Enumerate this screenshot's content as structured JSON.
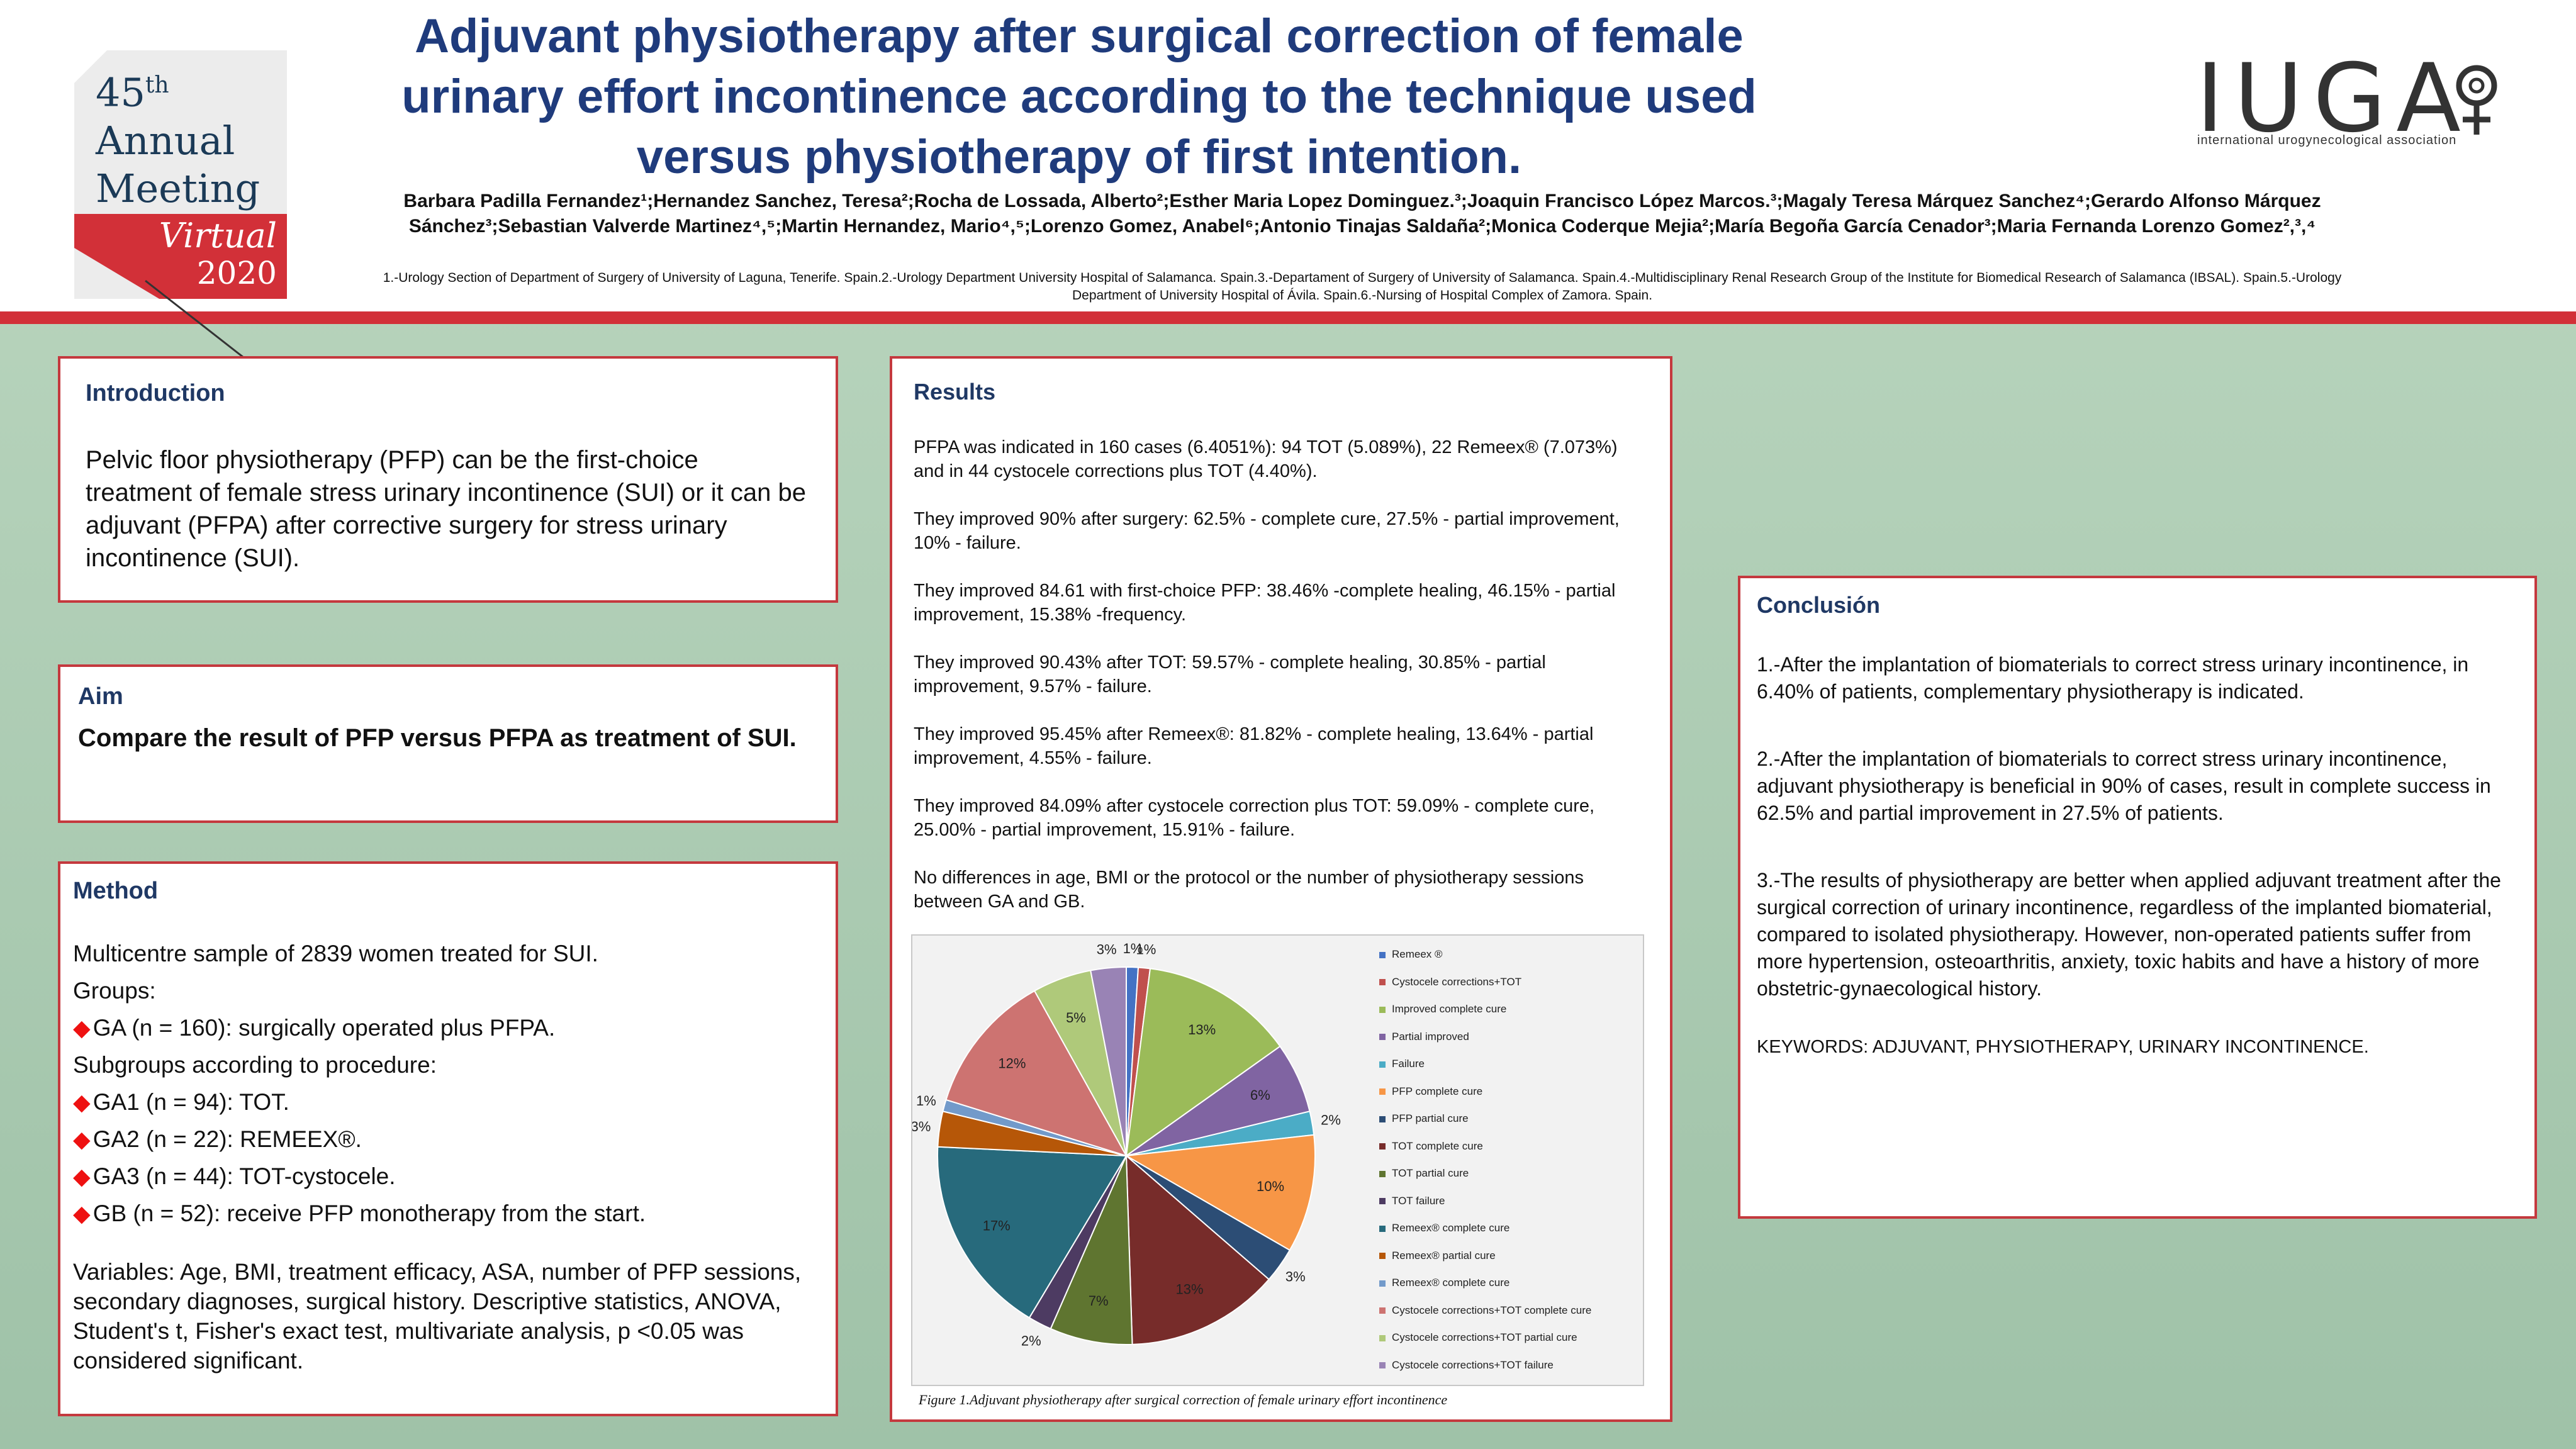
{
  "header": {
    "title": "Adjuvant physiotherapy after surgical correction of female urinary effort incontinence according to the technique used versus physiotherapy of first intention.",
    "authors": "Barbara Padilla Fernandez¹;Hernandez Sanchez, Teresa²;Rocha de Lossada, Alberto²;Esther Maria Lopez Dominguez.³;Joaquin Francisco López Marcos.³;Magaly Teresa Márquez Sanchez⁴;Gerardo Alfonso Márquez Sánchez³;Sebastian Valverde Martinez⁴,⁵;Martin Hernandez, Mario⁴,⁵;Lorenzo Gomez, Anabel⁶;Antonio Tinajas Saldaña²;Monica Coderque Mejia²;María Begoña García Cenador³;Maria Fernanda Lorenzo Gomez²,³,⁴",
    "affiliations": "1.-Urology Section of Department of Surgery of University of Laguna, Tenerife. Spain.2.-Urology Department University Hospital of Salamanca. Spain.3.-Departament of Surgery of University of Salamanca. Spain.4.-Multidisciplinary Renal Research Group of the Institute for Biomedical Research of Salamanca (IBSAL). Spain.5.-Urology Department of University Hospital of Ávila. Spain.6.-Nursing of Hospital Complex of Zamora. Spain."
  },
  "badge": {
    "number": "45",
    "suffix": "th",
    "line1": "Annual",
    "line2": "Meeting",
    "virtual": "Virtual",
    "year": "2020"
  },
  "logo": {
    "name": "IUGA",
    "subtitle": "international urogynecological association"
  },
  "introduction": {
    "heading": "Introduction",
    "text": "Pelvic floor physiotherapy (PFP) can be the first-choice treatment of female stress urinary incontinence (SUI) or it can be adjuvant (PFPA) after corrective surgery for stress urinary incontinence (SUI)."
  },
  "aim": {
    "heading": "Aim",
    "text": "Compare the result of PFP versus PFPA as treatment of SUI."
  },
  "method": {
    "heading": "Method",
    "lines": [
      "Multicentre sample of 2839 women treated for SUI.",
      "Groups:"
    ],
    "ga": "GA (n = 160): surgically operated plus PFPA.",
    "sub_heading": "Subgroups according to procedure:",
    "ga1": "GA1 (n = 94): TOT.",
    "ga2": "GA2 (n = 22): REMEEX®.",
    "ga3": "GA3 (n = 44): TOT-cystocele.",
    "gb": "GB (n = 52): receive PFP monotherapy from the start.",
    "variables": "Variables: Age, BMI, treatment efficacy, ASA, number of PFP sessions, secondary diagnoses, surgical history. Descriptive statistics, ANOVA, Student's t, Fisher's exact test, multivariate analysis, p <0.05 was considered significant."
  },
  "results": {
    "heading": "Results",
    "paragraphs": [
      "PFPA was indicated in 160 cases (6.4051%): 94 TOT (5.089%), 22 Remeex® (7.073%) and in 44 cystocele corrections plus TOT (4.40%).",
      "They improved 90% after surgery: 62.5% - complete cure, 27.5% - partial improvement, 10% - failure.",
      "They improved 84.61 with first-choice PFP: 38.46% -complete healing, 46.15% - partial improvement, 15.38% -frequency.",
      "They improved 90.43% after TOT: 59.57% - complete healing, 30.85% - partial improvement, 9.57% - failure.",
      "They improved 95.45% after Remeex®: 81.82% - complete healing, 13.64% - partial improvement, 4.55% - failure.",
      "They improved 84.09% after cystocele correction plus TOT: 59.09% - complete cure, 25.00% - partial improvement, 15.91% - failure.",
      "No differences in age, BMI or the protocol or the number of physiotherapy sessions between GA and GB."
    ],
    "figure_caption": "Figure 1.Adjuvant physiotherapy after surgical correction of female urinary effort incontinence"
  },
  "conclusion": {
    "heading": "Conclusión",
    "paragraphs": [
      "1.-After the implantation of biomaterials to correct stress urinary incontinence, in 6.40% of patients, complementary physiotherapy is indicated.",
      "2.-After the implantation of biomaterials to correct stress urinary incontinence, adjuvant physiotherapy is beneficial in 90% of cases, result in complete success in 62.5% and partial improvement in 27.5% of patients.",
      "3.-The results of physiotherapy are better when applied adjuvant treatment after the surgical correction of urinary incontinence, regardless of the implanted biomaterial, compared to isolated physiotherapy. However, non-operated patients suffer from more hypertension, osteoarthritis, anxiety, toxic habits and have a history of more obstetric-gynaecological history."
    ],
    "keywords": "KEYWORDS: ADJUVANT, PHYSIOTHERAPY, URINARY INCONTINENCE."
  },
  "chart_data": {
    "type": "pie",
    "title": "",
    "categories": [
      "Remeex ®",
      "Cystocele corrections+TOT",
      "Improved complete cure",
      "Partial improved",
      "Failure",
      "PFP complete cure",
      "PFP partial cure",
      "TOT complete cure",
      "TOT partial cure",
      "TOT failure",
      "Remeex® complete cure",
      "Remeex® partial cure",
      "Remeex® complete cure",
      "Cystocele corrections+TOT complete cure",
      "Cystocele corrections+TOT partial cure",
      "Cystocele corrections+TOT failure"
    ],
    "values": [
      1,
      1,
      13,
      6,
      2,
      10,
      3,
      13,
      7,
      2,
      17,
      3,
      1,
      12,
      5,
      3
    ],
    "labels": [
      "1%",
      "1%",
      "13%",
      "6%",
      "2%",
      "10%",
      "3%",
      "13%",
      "7%",
      "2%",
      "17%",
      "3%",
      "1%",
      "12%",
      "5%",
      "3%"
    ],
    "colors": [
      "#4472c4",
      "#c0504d",
      "#9bbb59",
      "#8064a2",
      "#4bacc6",
      "#f79646",
      "#2c4d75",
      "#772c2a",
      "#5f7530",
      "#4d3b62",
      "#276a7c",
      "#b65708",
      "#729aca",
      "#cd7371",
      "#afc97a",
      "#9983b5"
    ],
    "legend_position": "right"
  }
}
